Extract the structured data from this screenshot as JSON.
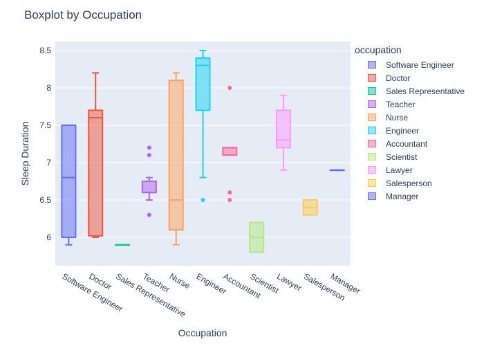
{
  "chart_data": {
    "type": "box",
    "title": "Boxplot by Occupation",
    "xlabel": "Occupation",
    "ylabel": "Sleep Duration",
    "ylim": [
      5.62,
      8.62
    ],
    "yticks": [
      6,
      6.5,
      7,
      7.5,
      8,
      8.5
    ],
    "grid": true,
    "legend_title": "occupation",
    "legend_position": "right",
    "series": [
      {
        "name": "Software Engineer",
        "color": "#636efa",
        "min": 5.9,
        "q1": 6.0,
        "median": 6.8,
        "q3": 7.5,
        "max": 7.5,
        "outliers": []
      },
      {
        "name": "Doctor",
        "color": "#EF553B",
        "min": 6.0,
        "q1": 6.02,
        "median": 7.6,
        "q3": 7.7,
        "max": 8.2,
        "outliers": []
      },
      {
        "name": "Sales Representative",
        "color": "#00cc96",
        "min": 5.9,
        "q1": 5.9,
        "median": 5.9,
        "q3": 5.9,
        "max": 5.9,
        "outliers": []
      },
      {
        "name": "Teacher",
        "color": "#ab63fa",
        "min": 6.5,
        "q1": 6.6,
        "median": 6.6,
        "q3": 6.75,
        "max": 6.8,
        "outliers": [
          7.2,
          7.1,
          6.3
        ]
      },
      {
        "name": "Nurse",
        "color": "#FFA15A",
        "min": 5.9,
        "q1": 6.1,
        "median": 6.5,
        "q3": 8.1,
        "max": 8.2,
        "outliers": []
      },
      {
        "name": "Engineer",
        "color": "#19d3f3",
        "min": 6.8,
        "q1": 7.7,
        "median": 8.3,
        "q3": 8.4,
        "max": 8.5,
        "outliers": [
          6.5
        ]
      },
      {
        "name": "Accountant",
        "color": "#FF6692",
        "min": 7.1,
        "q1": 7.1,
        "median": 7.2,
        "q3": 7.2,
        "max": 7.2,
        "outliers": [
          8.0,
          6.6,
          6.5
        ]
      },
      {
        "name": "Scientist",
        "color": "#B6E880",
        "min": 5.8,
        "q1": 5.8,
        "median": 6.0,
        "q3": 6.2,
        "max": 6.2,
        "outliers": []
      },
      {
        "name": "Lawyer",
        "color": "#FF97FF",
        "min": 6.9,
        "q1": 7.2,
        "median": 7.3,
        "q3": 7.7,
        "max": 7.9,
        "outliers": []
      },
      {
        "name": "Salesperson",
        "color": "#FECB52",
        "min": 6.3,
        "q1": 6.3,
        "median": 6.4,
        "q3": 6.5,
        "max": 6.5,
        "outliers": []
      },
      {
        "name": "Manager",
        "color": "#636efa",
        "min": 6.9,
        "q1": 6.9,
        "median": 6.9,
        "q3": 6.9,
        "max": 6.9,
        "outliers": []
      }
    ]
  }
}
